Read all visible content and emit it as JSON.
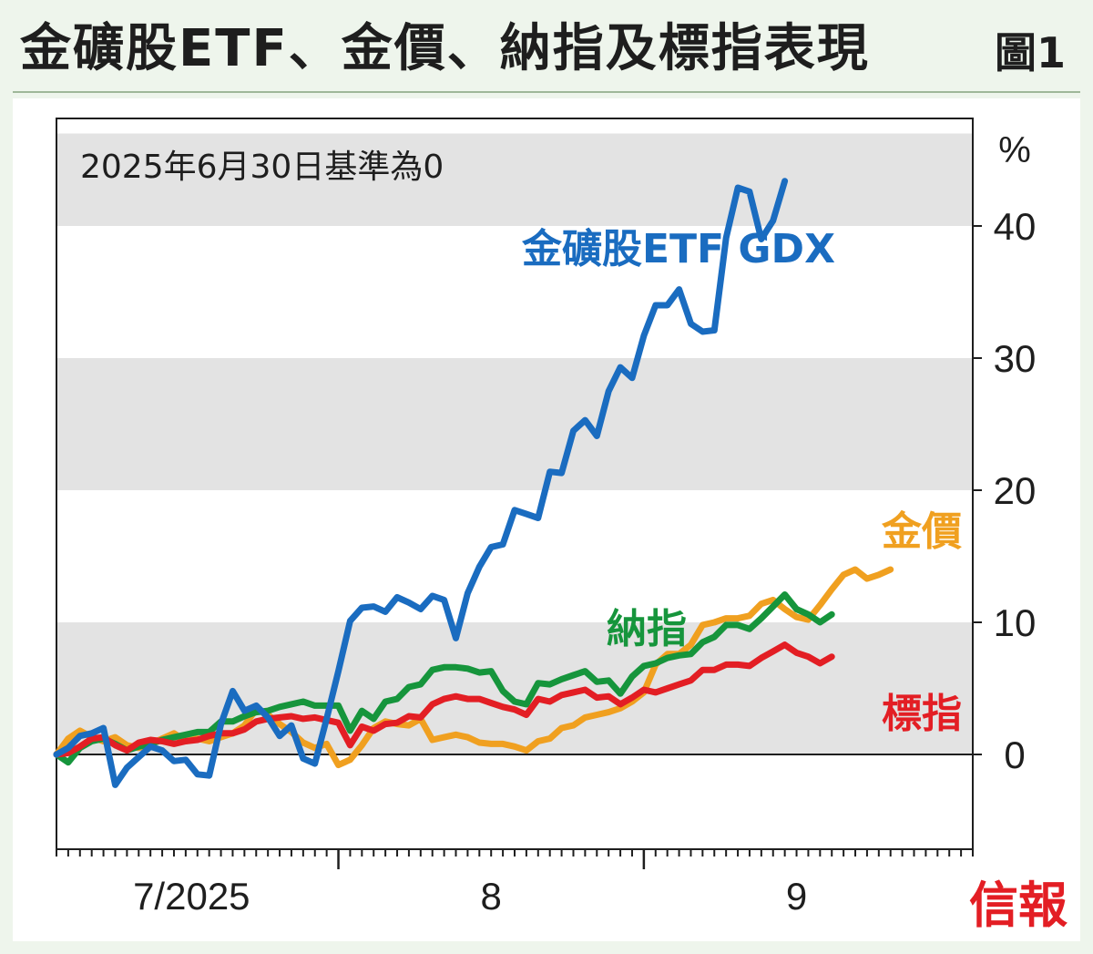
{
  "title": "金礦股ETF、金價、納指及標指表現",
  "figure_label": "圖1",
  "source_logo": "信報",
  "chart_data": {
    "type": "line",
    "subtitle": "2025年6月30日基準為0",
    "ylabel": "%",
    "ylim": [
      -7,
      47
    ],
    "yticks": [
      0,
      10,
      20,
      30,
      40
    ],
    "ytick_labels": [
      "0",
      "10",
      "20",
      "30",
      "40"
    ],
    "shaded_bands": [
      [
        40,
        47
      ],
      [
        20,
        30
      ],
      [
        0,
        10
      ]
    ],
    "x_major_ticks": [
      24,
      50
    ],
    "x_labels": [
      {
        "label": "7/2025",
        "pos": 11.5
      },
      {
        "label": "8",
        "pos": 37
      },
      {
        "label": "9",
        "pos": 63
      }
    ],
    "n_points": 79,
    "series": [
      {
        "name": "金價",
        "label": "金價",
        "color": "#f0a020",
        "values": [
          0,
          1.2,
          1.8,
          1.3,
          1.0,
          1.3,
          0.7,
          0.5,
          0.8,
          1.2,
          1.6,
          1.0,
          1.2,
          1.0,
          1.3,
          1.6,
          2.2,
          3.4,
          3.0,
          2.3,
          1.7,
          0.9,
          0.5,
          0.8,
          -0.8,
          -0.4,
          0.7,
          2.0,
          2.5,
          2.3,
          2.2,
          2.7,
          1.1,
          1.3,
          1.5,
          1.3,
          0.9,
          0.8,
          0.8,
          0.6,
          0.3,
          1.0,
          1.2,
          2.0,
          2.2,
          2.8,
          3.0,
          3.2,
          3.5,
          4.0,
          4.7,
          6.8,
          7.6,
          7.6,
          8.3,
          9.8,
          10.0,
          10.3,
          10.3,
          10.5,
          11.4,
          11.7,
          11.0,
          10.4,
          10.2,
          11.3,
          12.5,
          13.6,
          14.0,
          13.3,
          13.6,
          14.0
        ]
      },
      {
        "name": "納指",
        "label": "納指",
        "color": "#16953c",
        "values": [
          0,
          -0.6,
          0.5,
          1.0,
          1.2,
          0.8,
          0.3,
          0.6,
          0.8,
          1.1,
          1.3,
          1.5,
          1.7,
          1.7,
          2.5,
          2.5,
          2.9,
          3.2,
          3.3,
          3.6,
          3.8,
          4.0,
          3.7,
          3.7,
          3.7,
          1.8,
          3.3,
          2.7,
          4.0,
          4.2,
          5.1,
          5.3,
          6.4,
          6.6,
          6.6,
          6.5,
          6.2,
          6.3,
          4.8,
          4.0,
          3.8,
          5.4,
          5.3,
          5.7,
          6.0,
          6.3,
          5.5,
          5.6,
          4.6,
          5.9,
          6.7,
          6.9,
          7.3,
          7.5,
          7.6,
          8.5,
          8.9,
          9.8,
          9.8,
          9.5,
          10.3,
          11.2,
          12.1,
          11.0,
          10.6,
          10.0,
          10.6
        ]
      },
      {
        "name": "標指",
        "label": "標指",
        "color": "#e31e24",
        "values": [
          0,
          0.1,
          0.6,
          1.2,
          1.3,
          0.7,
          0.3,
          0.9,
          1.1,
          1.0,
          0.8,
          1.0,
          1.1,
          1.4,
          1.6,
          1.6,
          1.9,
          2.5,
          2.7,
          2.8,
          2.9,
          2.7,
          2.8,
          2.6,
          2.4,
          0.7,
          2.1,
          1.8,
          2.3,
          2.4,
          2.9,
          2.8,
          3.8,
          4.2,
          4.4,
          4.2,
          4.2,
          3.9,
          3.6,
          3.4,
          3.0,
          4.2,
          4.0,
          4.5,
          4.7,
          4.9,
          4.3,
          4.4,
          3.8,
          4.3,
          4.9,
          4.7,
          5.0,
          5.3,
          5.6,
          6.4,
          6.4,
          6.8,
          6.8,
          6.7,
          7.3,
          7.8,
          8.3,
          7.7,
          7.4,
          6.9,
          7.4
        ]
      },
      {
        "name": "金礦股ETF GDX",
        "label": "金礦股ETF GDX",
        "color": "#1a6cc0",
        "values": [
          0,
          0.5,
          1.4,
          1.6,
          2.0,
          -2.3,
          -1.0,
          -0.2,
          0.6,
          0.3,
          -0.5,
          -0.4,
          -1.5,
          -1.6,
          2.3,
          4.8,
          3.3,
          3.7,
          2.8,
          1.4,
          2.2,
          -0.3,
          -0.7,
          2.7,
          6.3,
          10.1,
          11.1,
          11.2,
          10.8,
          11.9,
          11.5,
          11.0,
          12.0,
          11.7,
          8.8,
          12.2,
          14.2,
          15.7,
          15.9,
          18.5,
          18.2,
          17.9,
          21.4,
          21.3,
          24.5,
          25.3,
          24.1,
          27.5,
          29.3,
          28.5,
          31.7,
          34.0,
          34.0,
          35.2,
          32.6,
          32.0,
          32.1,
          39.1,
          42.9,
          42.6,
          39.0,
          40.4,
          43.4
        ]
      }
    ]
  }
}
